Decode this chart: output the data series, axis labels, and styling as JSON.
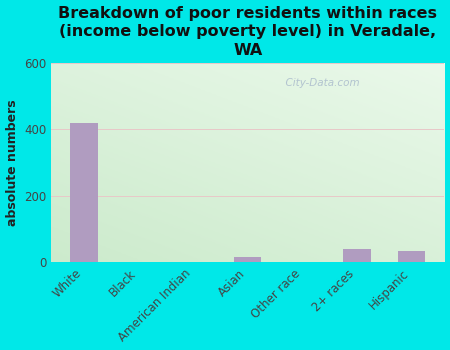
{
  "title": "Breakdown of poor residents within races\n(income below poverty level) in Veradale,\nWA",
  "categories": [
    "White",
    "Black",
    "American Indian",
    "Asian",
    "Other race",
    "2+ races",
    "Hispanic"
  ],
  "values": [
    420,
    0,
    0,
    15,
    0,
    40,
    33
  ],
  "bar_color": "#b09cc0",
  "ylabel": "absolute numbers",
  "ylim": [
    0,
    600
  ],
  "yticks": [
    0,
    200,
    400,
    600
  ],
  "background_color": "#00e8e8",
  "plot_bg_topleft": "#d8edd8",
  "plot_bg_topright": "#f5faf8",
  "plot_bg_bottom": "#e8f4e0",
  "watermark": "  City-Data.com",
  "title_fontsize": 11.5,
  "ylabel_fontsize": 9,
  "tick_fontsize": 8.5
}
